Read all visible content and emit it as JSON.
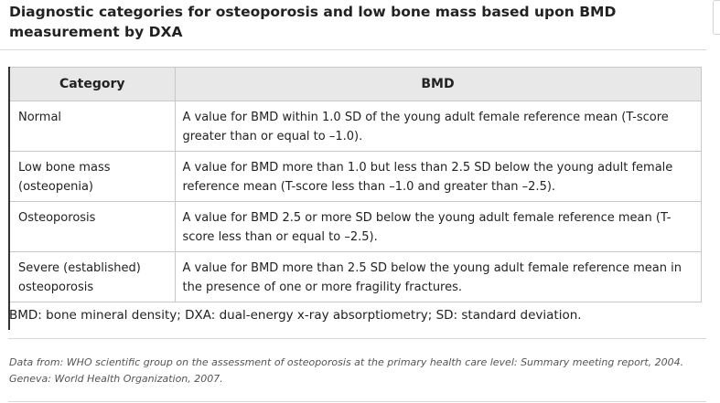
{
  "title": "Diagnostic categories for osteoporosis and low bone mass based upon BMD measurement by DXA",
  "table": {
    "headers": [
      "Category",
      "BMD"
    ],
    "rows": [
      {
        "category": "Normal",
        "bmd": "A value for BMD within 1.0 SD of the young adult female reference mean (T-score greater than or equal to –1.0)."
      },
      {
        "category": "Low bone mass (osteopenia)",
        "bmd": "A value for BMD more than 1.0 but less than 2.5 SD below the young adult female reference mean (T-score less than –1.0 and greater than –2.5)."
      },
      {
        "category": "Osteoporosis",
        "bmd": "A value for BMD 2.5 or more SD below the young adult female reference mean (T-score less than or equal to –2.5)."
      },
      {
        "category": "Severe (established) osteoporosis",
        "bmd": "A value for BMD more than 2.5 SD below the young adult female reference mean in the presence of one or more fragility fractures."
      }
    ]
  },
  "footnote": "BMD: bone mineral density; DXA: dual-energy x-ray absorptiometry; SD: standard deviation.",
  "source": "Data from: WHO scientific group on the assessment of osteoporosis at the primary health care level: Summary meeting report, 2004. Geneva: World Health Organization, 2007."
}
